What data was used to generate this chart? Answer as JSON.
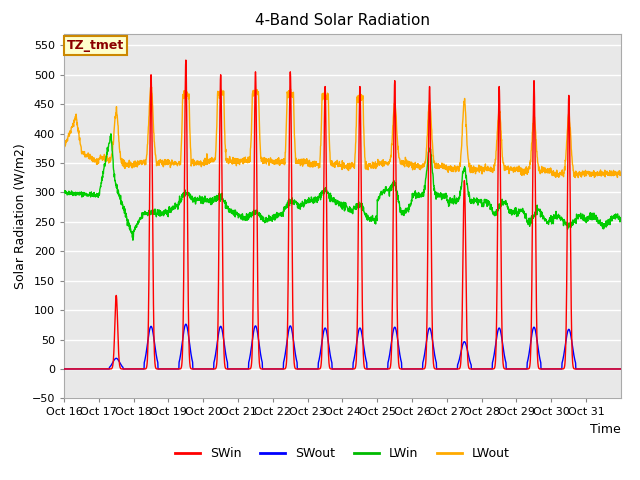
{
  "title": "4-Band Solar Radiation",
  "xlabel": "Time",
  "ylabel": "Solar Radiation (W/m2)",
  "ylim": [
    -50,
    570
  ],
  "yticks": [
    -50,
    0,
    50,
    100,
    150,
    200,
    250,
    300,
    350,
    400,
    450,
    500,
    550
  ],
  "xtick_labels": [
    "Oct 16",
    "Oct 17",
    "Oct 18",
    "Oct 19",
    "Oct 20",
    "Oct 21",
    "Oct 22",
    "Oct 23",
    "Oct 24",
    "Oct 25",
    "Oct 26",
    "Oct 27",
    "Oct 28",
    "Oct 29",
    "Oct 30",
    "Oct 31"
  ],
  "legend_labels": [
    "SWin",
    "SWout",
    "LWin",
    "LWout"
  ],
  "legend_colors": [
    "#ff0000",
    "#0000ff",
    "#00bb00",
    "#ffaa00"
  ],
  "annotation_text": "TZ_tmet",
  "annotation_bg": "#ffffcc",
  "annotation_border": "#cc8800",
  "bg_color": "#e8e8e8",
  "grid_color": "#ffffff",
  "line_colors": {
    "SWin": "#ff0000",
    "SWout": "#0000ff",
    "LWin": "#00cc00",
    "LWout": "#ffaa00"
  },
  "swin_peaks": [
    0,
    125,
    500,
    525,
    500,
    505,
    505,
    480,
    480,
    490,
    480,
    320,
    480,
    490,
    465,
    0
  ],
  "lwout_base": 355,
  "lwin_base": 270,
  "n_days": 16
}
